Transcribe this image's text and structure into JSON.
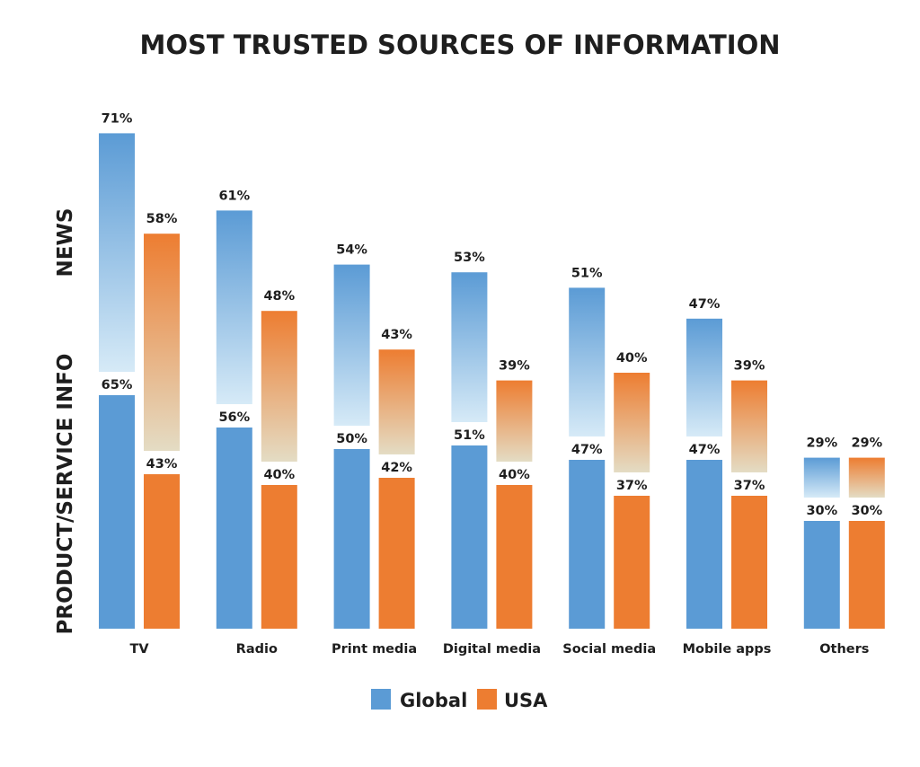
{
  "chart_data": {
    "type": "bar",
    "title": "MOST TRUSTED SOURCES OF INFORMATION",
    "section_labels": {
      "news": "NEWS",
      "product": "PRODUCT/SERVICE INFO"
    },
    "categories": [
      "TV",
      "Radio",
      "Print media",
      "Digital media",
      "Social media",
      "Mobile apps",
      "Others"
    ],
    "series": [
      {
        "name": "Global",
        "color": "#5b9bd5",
        "section": "product",
        "values": [
          65,
          56,
          50,
          51,
          47,
          47,
          30
        ]
      },
      {
        "name": "USA",
        "color": "#ed7d31",
        "section": "product",
        "values": [
          43,
          40,
          42,
          40,
          37,
          37,
          30
        ]
      },
      {
        "name": "Global",
        "color": "#5b9bd5",
        "section": "news",
        "values": [
          71,
          61,
          54,
          53,
          51,
          47,
          29
        ]
      },
      {
        "name": "USA",
        "color": "#ed7d31",
        "section": "news",
        "values": [
          58,
          48,
          43,
          39,
          40,
          39,
          29
        ]
      }
    ],
    "value_suffix": "%",
    "legend": {
      "position": "bottom",
      "entries": [
        {
          "label": "Global",
          "color": "#5b9bd5"
        },
        {
          "label": "USA",
          "color": "#ed7d31"
        }
      ]
    },
    "grid": false
  }
}
